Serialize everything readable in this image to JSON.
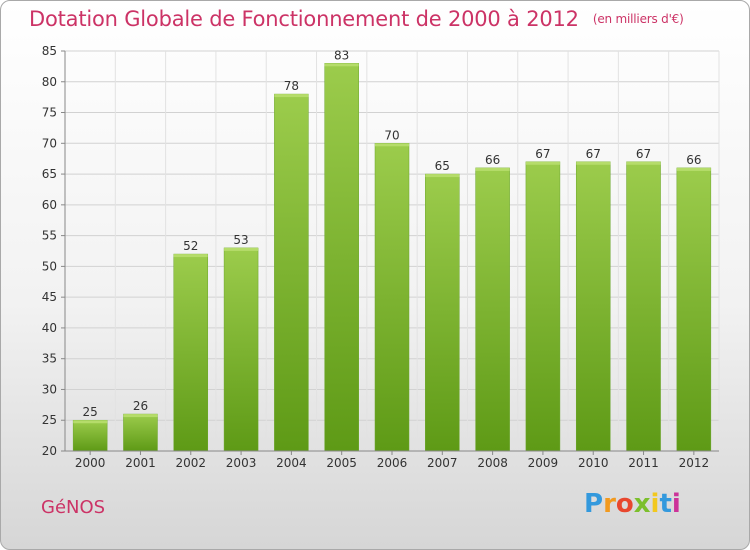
{
  "header": {
    "title": "Dotation Globale de Fonctionnement de 2000 à 2012",
    "subtitle": "(en milliers d'€)"
  },
  "footer": {
    "city": "GéNOS",
    "logo_letters": [
      "P",
      "r",
      "o",
      "x",
      "i",
      "t",
      "i"
    ]
  },
  "colors": {
    "title": "#cc3366",
    "bar_top": "#9ccc4c",
    "bar_bottom": "#5e9a16",
    "grid": "#d2d2d2"
  },
  "chart_data": {
    "type": "bar",
    "categories": [
      "2000",
      "2001",
      "2002",
      "2003",
      "2004",
      "2005",
      "2006",
      "2007",
      "2008",
      "2009",
      "2010",
      "2011",
      "2012"
    ],
    "values": [
      25,
      26,
      52,
      53,
      78,
      83,
      70,
      65,
      66,
      67,
      67,
      67,
      66
    ],
    "ylim": [
      20,
      85
    ],
    "yticks": [
      20,
      25,
      30,
      35,
      40,
      45,
      50,
      55,
      60,
      65,
      70,
      75,
      80,
      85
    ],
    "title": "Dotation Globale de Fonctionnement de 2000 à 2012",
    "subtitle": "(en milliers d'€)",
    "xlabel": "",
    "ylabel": "",
    "grid": true,
    "data_labels": true
  }
}
